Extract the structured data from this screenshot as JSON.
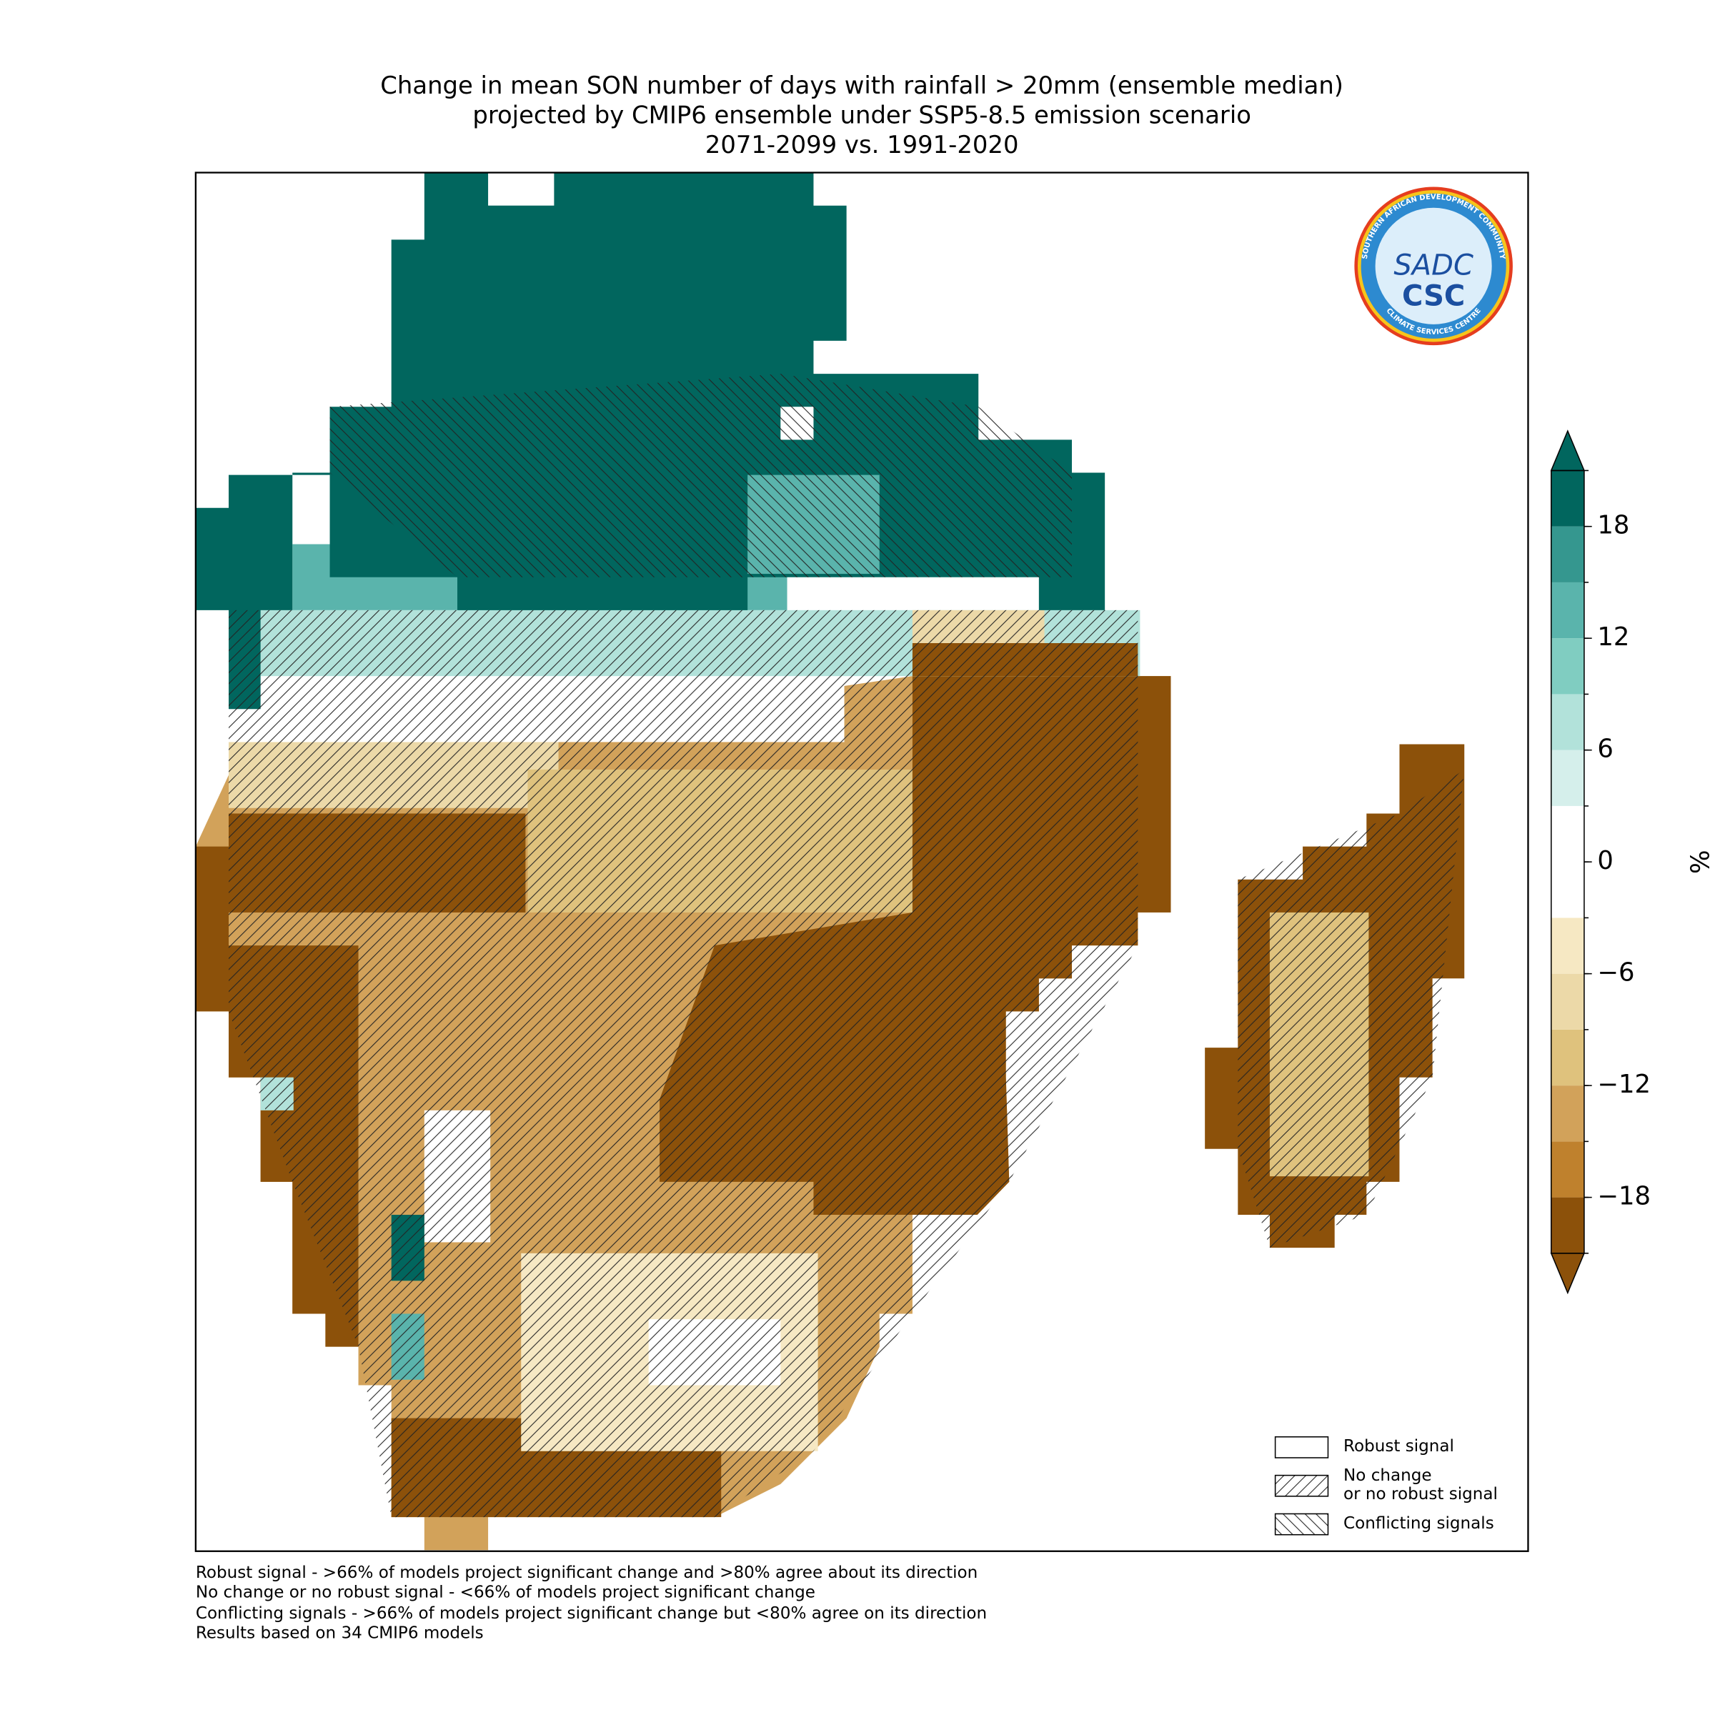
{
  "title": [
    "Change in mean SON number of days with rainfall > 20mm (ensemble median)",
    "projected by CMIP6 ensemble under SSP5-8.5 emission scenario",
    "2071-2099 vs. 1991-2020"
  ],
  "colorbar": {
    "label": "%",
    "lim": [
      -21,
      21
    ],
    "levels": [
      -21,
      -18,
      -15,
      -12,
      -9,
      -6,
      -3,
      0,
      3,
      6,
      9,
      12,
      15,
      18,
      21
    ],
    "colors": [
      "#8c510a",
      "#bf812d",
      "#d2a25a",
      "#dfc27d",
      "#ecd9a8",
      "#f6e8c3",
      "#ffffff",
      "#ffffff",
      "#d5efeb",
      "#b2e2da",
      "#80cdc1",
      "#5ab4ac",
      "#35978f",
      "#01665e"
    ],
    "extend": true,
    "ticks": [
      {
        "value": -18,
        "label": "−18"
      },
      {
        "value": -12,
        "label": "−12"
      },
      {
        "value": -6,
        "label": "−6"
      },
      0,
      6,
      12,
      18
    ]
  },
  "legend": {
    "items": [
      {
        "lines": [
          "Robust signal"
        ],
        "hatch": "none"
      },
      {
        "lines": [
          "No change",
          "or no robust signal"
        ],
        "hatch": "/"
      },
      {
        "lines": [
          "Conflicting signals"
        ],
        "hatch": "\\"
      }
    ]
  },
  "footnotes": [
    "Robust signal - >66% of models project significant change and >80% agree about its direction",
    "No change or no robust signal - <66% of models project significant change",
    "Conflicting signals - >66% of models project significant change but <80% agree on its direction",
    "Results based on 34 CMIP6 models"
  ],
  "logo": {
    "ring_top": "SOUTHERN AFRICAN DEVELOPMENT COMMUNITY",
    "ring_bottom": "CLIMATE SERVICES CENTRE",
    "mark": "SADC",
    "abbr": "CSC"
  }
}
